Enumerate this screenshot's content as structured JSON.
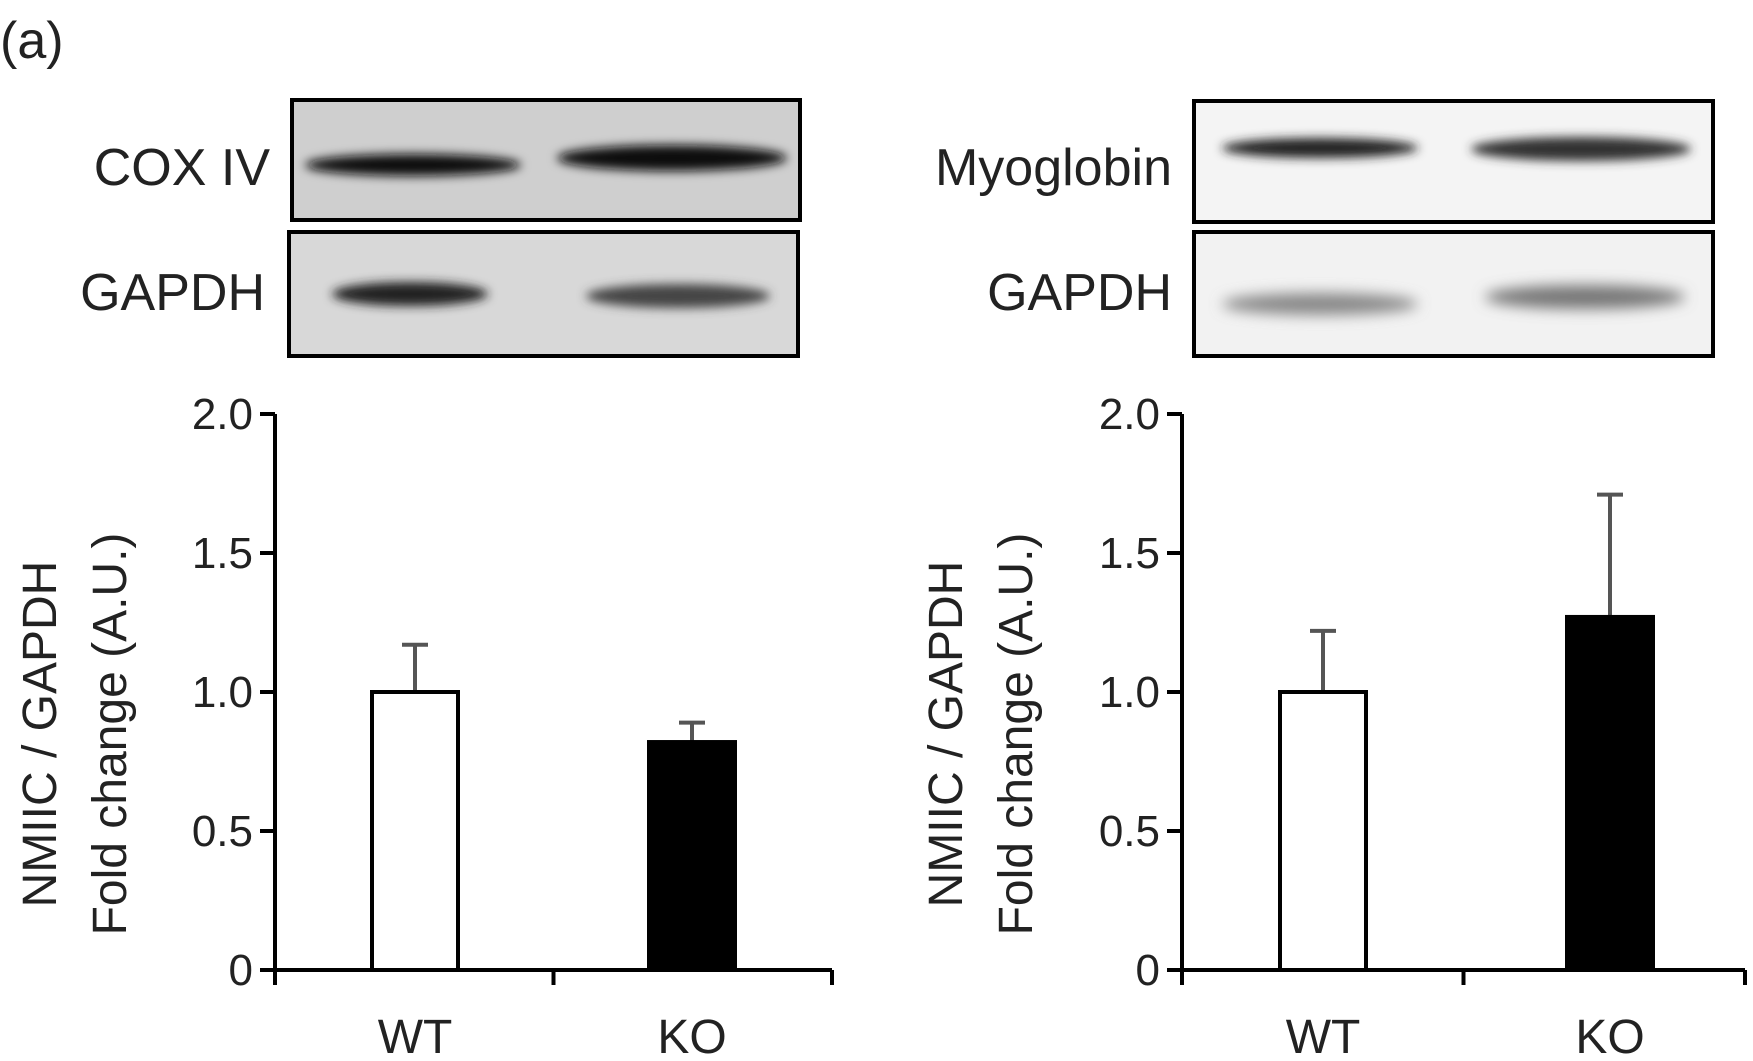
{
  "panel_label": "(a)",
  "blots": [
    {
      "target_label": "COX IV",
      "control_label": "GAPDH"
    },
    {
      "target_label": "Myoglobin",
      "control_label": "GAPDH"
    }
  ],
  "colors": {
    "wt_bar": "#ffffff",
    "ko_bar": "#000000",
    "axis": "#000000",
    "error_bar": "#555555"
  },
  "chart_data": [
    {
      "type": "bar",
      "categories": [
        "WT",
        "KO"
      ],
      "values": [
        1.0,
        0.82
      ],
      "errors": [
        0.17,
        0.07
      ],
      "ylabel_line1": "NMIIC / GAPDH",
      "ylabel_line2": "Fold change (A.U.)",
      "ylim": [
        0,
        2.0
      ],
      "yticks": [
        "0",
        "0.5",
        "1.0",
        "1.5",
        "2.0"
      ],
      "grid": false
    },
    {
      "type": "bar",
      "categories": [
        "WT",
        "KO"
      ],
      "values": [
        1.0,
        1.27
      ],
      "errors": [
        0.22,
        0.44
      ],
      "ylabel_line1": "NMIIC / GAPDH",
      "ylabel_line2": "Fold change (A.U.)",
      "ylim": [
        0,
        2.0
      ],
      "yticks": [
        "0",
        "0.5",
        "1.0",
        "1.5",
        "2.0"
      ],
      "grid": false
    }
  ]
}
